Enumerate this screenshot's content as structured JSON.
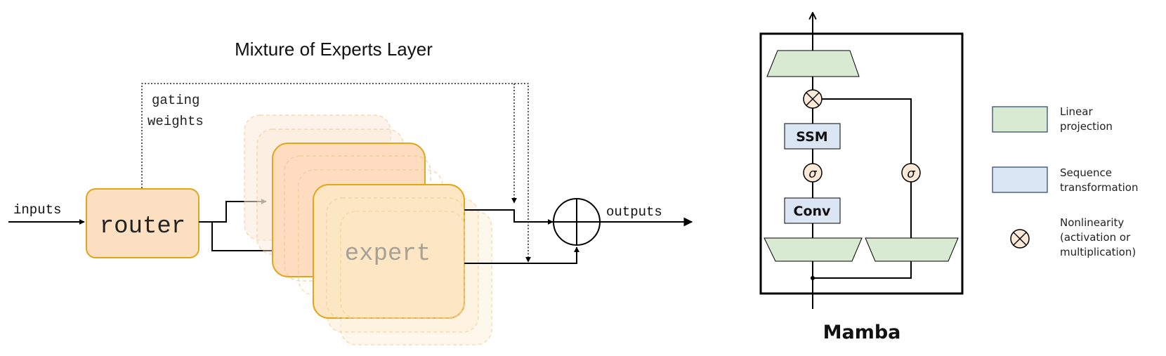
{
  "moe": {
    "title": "Mixture of Experts Layer",
    "gating_label_line1": "gating",
    "gating_label_line2": "weights",
    "inputs_label": "inputs",
    "router_label": "router",
    "expert_label": "expert",
    "outputs_label": "outputs",
    "colors": {
      "router_fill": "#fde0c2",
      "router_stroke": "#e3a51a",
      "expert_fill": "#fde6c4",
      "expert_back_fill": "#fde0cc"
    }
  },
  "mamba": {
    "title": "Mamba",
    "ssm_label": "SSM",
    "conv_label": "Conv",
    "sigma_symbol": "σ",
    "colors": {
      "linear_fill": "#d9ead3",
      "sequence_fill": "#dbe6f4",
      "nonlinearity_fill": "#fde9d8"
    }
  },
  "legend": {
    "linear_line1": "Linear",
    "linear_line2": "projection",
    "sequence_line1": "Sequence",
    "sequence_line2": "transformation",
    "nonlin_line1": "Nonlinearity",
    "nonlin_line2": "(activation or",
    "nonlin_line3": "multiplication)"
  }
}
